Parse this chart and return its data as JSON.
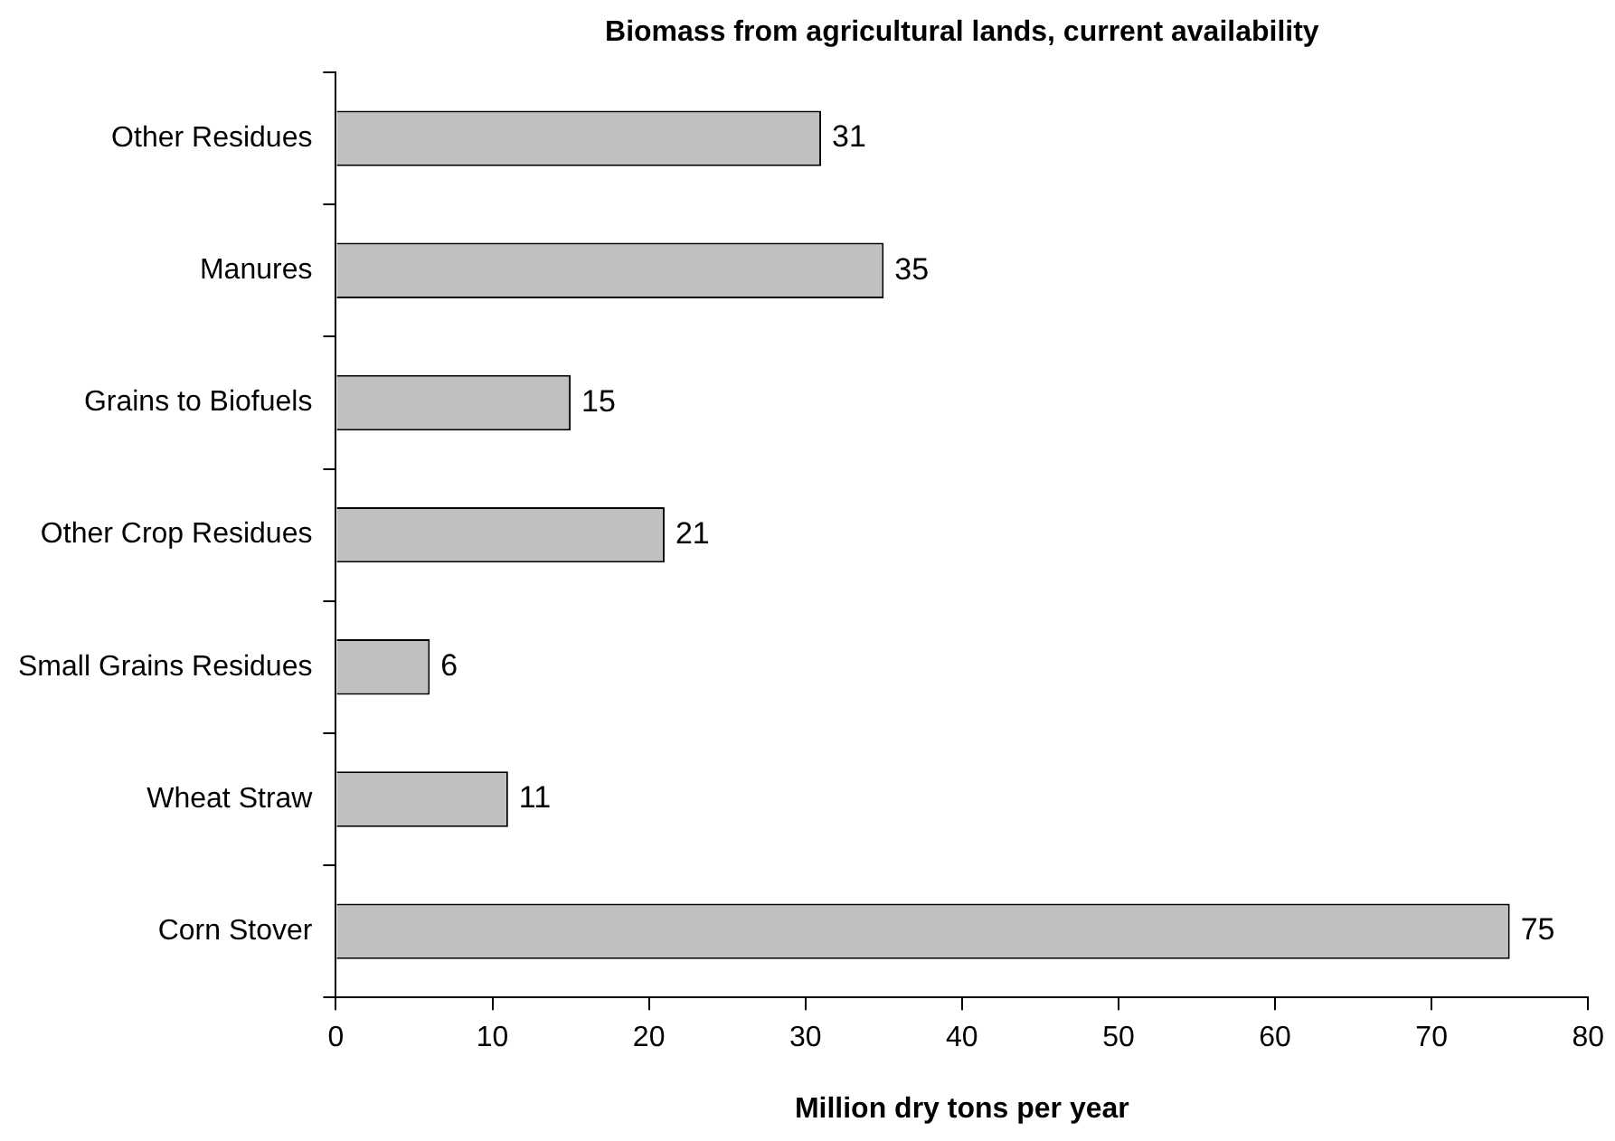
{
  "chart_data": {
    "type": "bar",
    "orientation": "horizontal",
    "title": "Biomass from agricultural lands, current availability",
    "xlabel": "Million dry tons per year",
    "categories": [
      "Other Residues",
      "Manures",
      "Grains to Biofuels",
      "Other Crop Residues",
      "Small Grains Residues",
      "Wheat Straw",
      "Corn Stover"
    ],
    "values": [
      31,
      35,
      15,
      21,
      6,
      11,
      75
    ],
    "color": "#c0c0c0",
    "xlim": [
      0,
      80
    ],
    "xticks": [
      0,
      10,
      20,
      30,
      40,
      50,
      60,
      70,
      80
    ],
    "grid": false,
    "legend": false,
    "data_labels": true
  }
}
